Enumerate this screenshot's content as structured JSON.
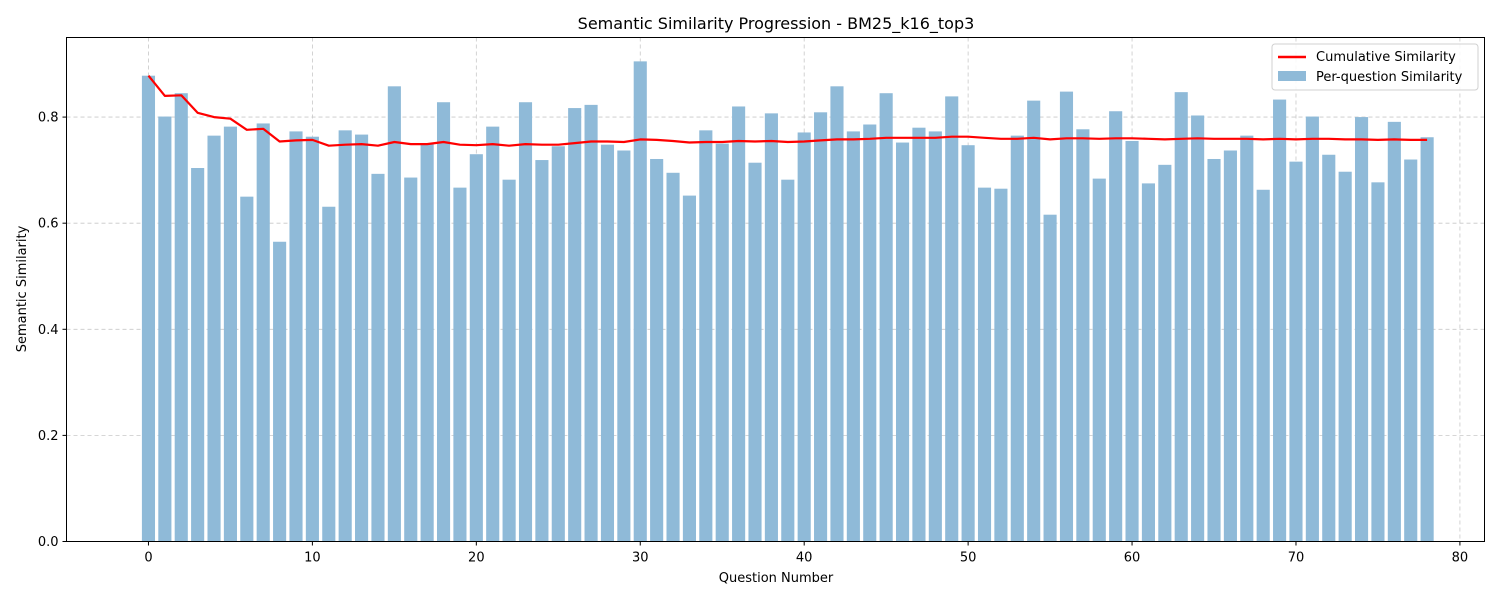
{
  "chart_data": {
    "type": "bar",
    "title": "Semantic Similarity Progression - BM25_k16_top3",
    "xlabel": "Question Number",
    "ylabel": "Semantic Similarity",
    "xlim": [
      -5,
      81.5
    ],
    "ylim": [
      0,
      0.95
    ],
    "x_ticks": [
      0,
      10,
      20,
      30,
      40,
      50,
      60,
      70,
      80
    ],
    "y_ticks": [
      0.0,
      0.2,
      0.4,
      0.6,
      0.8
    ],
    "y_tick_labels": [
      "0.0",
      "0.2",
      "0.4",
      "0.6",
      "0.8"
    ],
    "grid": true,
    "legend_position": "top-right",
    "colors": {
      "bars": "#8fbad8",
      "line": "#ff0000",
      "grid": "#c8c8c8"
    },
    "x": [
      0,
      1,
      2,
      3,
      4,
      5,
      6,
      7,
      8,
      9,
      10,
      11,
      12,
      13,
      14,
      15,
      16,
      17,
      18,
      19,
      20,
      21,
      22,
      23,
      24,
      25,
      26,
      27,
      28,
      29,
      30,
      31,
      32,
      33,
      34,
      35,
      36,
      37,
      38,
      39,
      40,
      41,
      42,
      43,
      44,
      45,
      46,
      47,
      48,
      49,
      50,
      51,
      52,
      53,
      54,
      55,
      56,
      57,
      58,
      59,
      60,
      61,
      62,
      63,
      64,
      65,
      66,
      67,
      68,
      69,
      70,
      71,
      72,
      73,
      74,
      75,
      76,
      77,
      78
    ],
    "series": [
      {
        "name": "Per-question Similarity",
        "kind": "bar",
        "values": [
          0.878,
          0.801,
          0.845,
          0.704,
          0.765,
          0.782,
          0.65,
          0.788,
          0.565,
          0.773,
          0.763,
          0.631,
          0.775,
          0.767,
          0.693,
          0.858,
          0.686,
          0.75,
          0.828,
          0.667,
          0.73,
          0.782,
          0.682,
          0.828,
          0.719,
          0.745,
          0.817,
          0.823,
          0.748,
          0.737,
          0.905,
          0.721,
          0.695,
          0.652,
          0.775,
          0.75,
          0.82,
          0.714,
          0.807,
          0.682,
          0.771,
          0.809,
          0.858,
          0.773,
          0.786,
          0.845,
          0.752,
          0.78,
          0.773,
          0.839,
          0.747,
          0.667,
          0.665,
          0.765,
          0.831,
          0.616,
          0.848,
          0.777,
          0.684,
          0.811,
          0.755,
          0.675,
          0.71,
          0.847,
          0.803,
          0.721,
          0.737,
          0.765,
          0.663,
          0.833,
          0.716,
          0.801,
          0.729,
          0.697,
          0.8,
          0.677,
          0.791,
          0.72,
          0.762
        ]
      },
      {
        "name": "Cumulative Similarity",
        "kind": "line",
        "values": [
          0.878,
          0.84,
          0.841,
          0.808,
          0.8,
          0.797,
          0.776,
          0.778,
          0.754,
          0.756,
          0.757,
          0.746,
          0.748,
          0.749,
          0.746,
          0.753,
          0.749,
          0.749,
          0.753,
          0.748,
          0.747,
          0.749,
          0.746,
          0.749,
          0.748,
          0.748,
          0.751,
          0.754,
          0.754,
          0.753,
          0.758,
          0.757,
          0.755,
          0.752,
          0.753,
          0.753,
          0.755,
          0.754,
          0.755,
          0.753,
          0.754,
          0.756,
          0.758,
          0.758,
          0.759,
          0.761,
          0.761,
          0.761,
          0.761,
          0.763,
          0.763,
          0.761,
          0.759,
          0.759,
          0.761,
          0.758,
          0.76,
          0.76,
          0.759,
          0.76,
          0.76,
          0.759,
          0.758,
          0.759,
          0.76,
          0.759,
          0.759,
          0.759,
          0.758,
          0.759,
          0.758,
          0.759,
          0.759,
          0.758,
          0.758,
          0.757,
          0.758,
          0.757,
          0.757
        ]
      }
    ]
  }
}
